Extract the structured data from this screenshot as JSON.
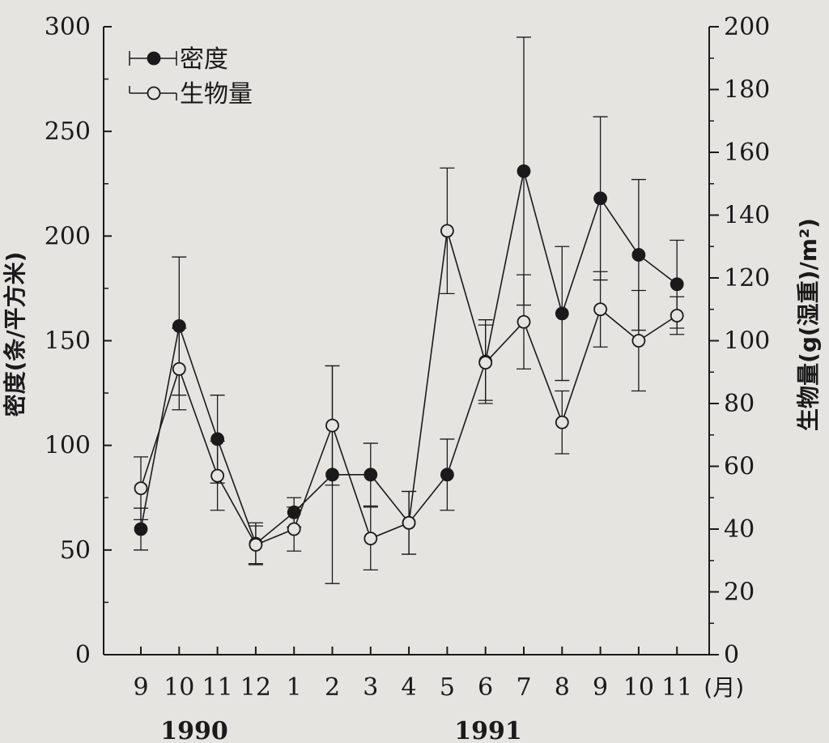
{
  "chart_data": {
    "type": "line",
    "categories": [
      "9",
      "10",
      "11",
      "12",
      "1",
      "2",
      "3",
      "4",
      "5",
      "6",
      "7",
      "8",
      "9",
      "10",
      "11"
    ],
    "unit_label": "(月)",
    "years": [
      {
        "label": "1990",
        "start_index": 0,
        "end_index": 3
      },
      {
        "label": "1991",
        "start_index": 4,
        "end_index": 14
      }
    ],
    "y_left": {
      "label": "密度(条/平方米)",
      "ticks": [
        "0",
        "50",
        "100",
        "150",
        "200",
        "250",
        "300"
      ],
      "lim": [
        0,
        300
      ]
    },
    "y_right": {
      "label": "生物量(g(湿重)/m²)",
      "ticks": [
        "0",
        "20",
        "40",
        "60",
        "80",
        "100",
        "120",
        "140",
        "160",
        "180",
        "200"
      ],
      "lim": [
        0,
        200
      ]
    },
    "series": [
      {
        "name": "密度",
        "axis": "left",
        "marker": "filled-circle",
        "values": [
          60,
          157,
          103,
          53,
          68,
          86,
          86,
          63,
          86,
          140,
          231,
          163,
          218,
          191,
          177
        ],
        "errors": [
          10,
          33,
          21,
          10,
          7,
          52,
          15,
          15,
          17,
          20,
          64,
          32,
          39,
          36,
          21
        ]
      },
      {
        "name": "生物量",
        "axis": "right",
        "marker": "open-circle",
        "values": [
          53,
          91,
          57,
          35,
          40,
          73,
          37,
          42,
          135,
          93,
          106,
          74,
          110,
          100,
          108
        ],
        "errors": [
          10,
          13,
          11,
          6,
          7,
          19,
          10,
          10,
          20,
          12,
          15,
          10,
          12,
          16,
          6
        ]
      }
    ],
    "legend": {
      "placement": "top-left"
    },
    "grid": false
  }
}
